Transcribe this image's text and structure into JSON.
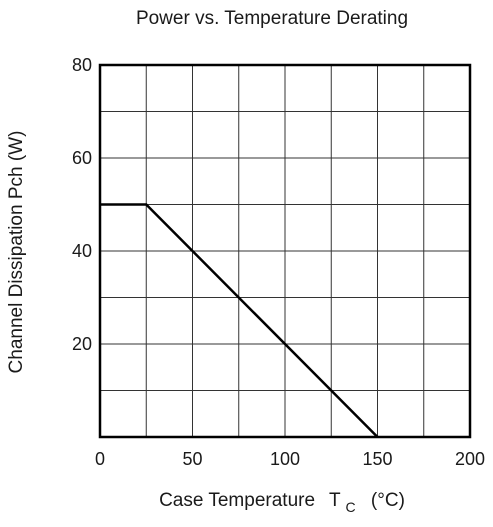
{
  "chart_data": {
    "type": "line",
    "title": "Power vs. Temperature Derating",
    "xlabel": {
      "main": "Case Temperature",
      "symbol": "T",
      "subscript": "C",
      "unit": "(°C)"
    },
    "ylabel": "Channel Dissipation  Pch  (W)",
    "xlim": [
      0,
      200
    ],
    "ylim": [
      0,
      80
    ],
    "x_ticks": [
      0,
      50,
      100,
      150,
      200
    ],
    "x_tick_labels": [
      "0",
      "50",
      "100",
      "150",
      "200"
    ],
    "y_ticks": [
      20,
      40,
      60,
      80
    ],
    "y_tick_labels": [
      "20",
      "40",
      "60",
      "80"
    ],
    "x_grid": [
      0,
      25,
      50,
      75,
      100,
      125,
      150,
      175,
      200
    ],
    "y_grid": [
      0,
      10,
      20,
      30,
      40,
      50,
      60,
      70,
      80
    ],
    "grid": true,
    "series": [
      {
        "x": [
          0,
          25,
          150
        ],
        "y": [
          50,
          50,
          0
        ]
      }
    ],
    "colors": {
      "line": "#000000",
      "grid": "#333333",
      "frame": "#000000",
      "text": "#1a1a1a"
    }
  }
}
